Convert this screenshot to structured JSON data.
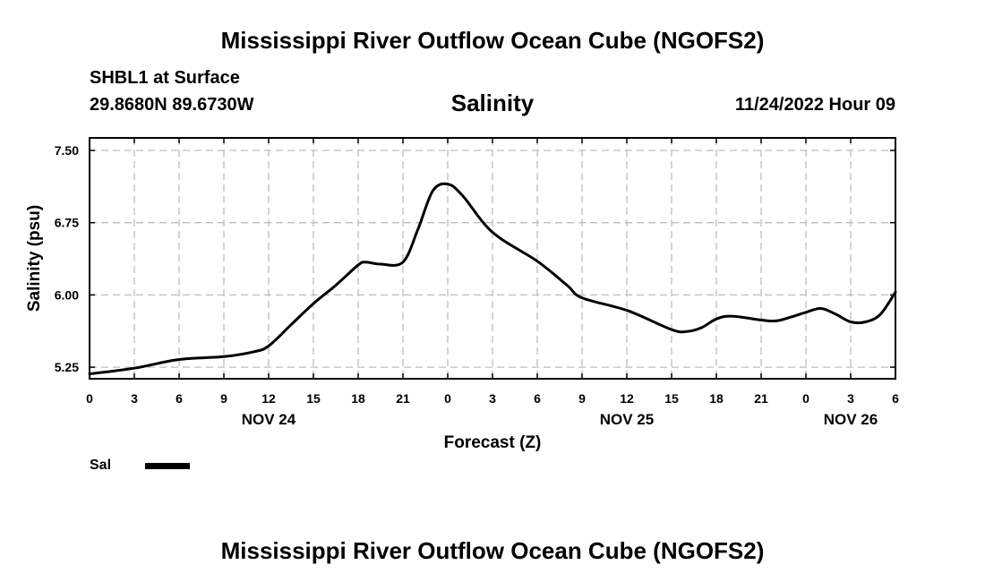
{
  "header": {
    "title": "Mississippi River Outflow Ocean Cube (NGOFS2)",
    "station": "SHBL1 at Surface",
    "coords": "29.8680N  89.6730W",
    "variable": "Salinity",
    "datetime": "11/24/2022 Hour 09"
  },
  "footer": {
    "title": "Mississippi River Outflow Ocean Cube (NGOFS2)"
  },
  "legend": {
    "label": "Sal",
    "color": "#000000"
  },
  "chart_data": {
    "type": "line",
    "title": "Salinity",
    "xlabel": "Forecast (Z)",
    "ylabel": "Salinity (psu)",
    "x_unit": "hours from Nov 24 00Z",
    "xlim": [
      0,
      54
    ],
    "ylim": [
      5.13,
      7.63
    ],
    "xticks": [
      0,
      3,
      6,
      9,
      12,
      15,
      18,
      21,
      24,
      27,
      30,
      33,
      36,
      39,
      42,
      45,
      48,
      51,
      54
    ],
    "xtick_labels": [
      "0",
      "3",
      "6",
      "9",
      "12",
      "15",
      "18",
      "21",
      "0",
      "3",
      "6",
      "9",
      "12",
      "15",
      "18",
      "21",
      "0",
      "3",
      "6"
    ],
    "yticks": [
      5.25,
      6.0,
      6.75,
      7.5
    ],
    "ytick_labels": [
      "5.25",
      "6.00",
      "6.75",
      "7.50"
    ],
    "date_labels": [
      {
        "x": 12,
        "label": "NOV 24"
      },
      {
        "x": 36,
        "label": "NOV 25"
      },
      {
        "x": 51,
        "label": "NOV 26"
      }
    ],
    "grid": true,
    "series": [
      {
        "name": "Sal",
        "color": "#000000",
        "x": [
          0,
          3,
          6,
          9,
          11,
          12,
          13.5,
          15,
          16.5,
          18,
          18.5,
          19.5,
          21,
          22,
          23,
          24,
          25,
          27,
          30,
          32,
          33,
          36,
          39,
          40,
          41,
          42,
          43,
          45,
          46,
          47,
          48,
          49,
          50,
          51,
          52,
          53,
          54
        ],
        "values": [
          5.18,
          5.24,
          5.33,
          5.36,
          5.41,
          5.47,
          5.69,
          5.91,
          6.1,
          6.31,
          6.34,
          6.32,
          6.34,
          6.68,
          7.08,
          7.15,
          7.03,
          6.65,
          6.35,
          6.1,
          5.97,
          5.84,
          5.64,
          5.62,
          5.66,
          5.75,
          5.78,
          5.74,
          5.73,
          5.77,
          5.82,
          5.86,
          5.8,
          5.72,
          5.72,
          5.8,
          6.03
        ]
      }
    ]
  }
}
